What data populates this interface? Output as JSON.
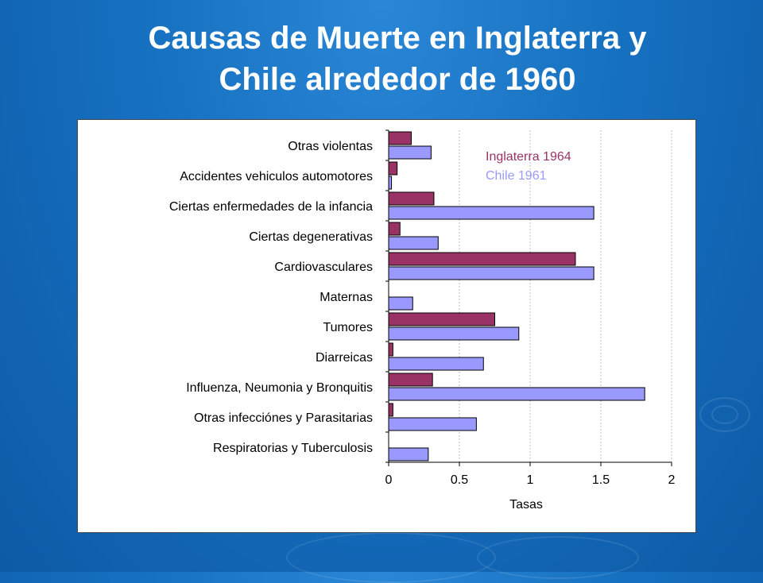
{
  "title": {
    "line1": "Causas de Muerte en Inglaterra y",
    "line2": "Chile alrededor de 1960"
  },
  "colors": {
    "inglaterra": "#993366",
    "chile": "#9999ff",
    "background": "#1670c0"
  },
  "chart_data": {
    "type": "bar",
    "orientation": "horizontal",
    "categories": [
      "Otras violentas",
      "Accidentes vehiculos automotores",
      "Ciertas enfermedades de la infancia",
      "Ciertas  degenerativas",
      "Cardiovasculares",
      "Maternas",
      "Tumores ",
      "Diarreicas",
      "Influenza, Neumonia y Bronquitis",
      "Otras infecciónes y Parasitarias",
      "Respiratorias y Tuberculosis"
    ],
    "series": [
      {
        "name": "Inglaterra 1964",
        "values": [
          0.16,
          0.06,
          0.32,
          0.08,
          1.32,
          0.0,
          0.75,
          0.03,
          0.31,
          0.03,
          0.0
        ]
      },
      {
        "name": "Chile 1961",
        "values": [
          0.3,
          0.02,
          1.45,
          0.35,
          1.45,
          0.17,
          0.92,
          0.67,
          1.81,
          0.62,
          0.28
        ]
      }
    ],
    "xlabel": "Tasas",
    "ylabel": "",
    "xlim": [
      0,
      2
    ],
    "xticks": [
      "0",
      "0.5",
      "1",
      "1.5",
      "2"
    ],
    "grid": "vertical dashed",
    "legend_position": "top-right"
  }
}
